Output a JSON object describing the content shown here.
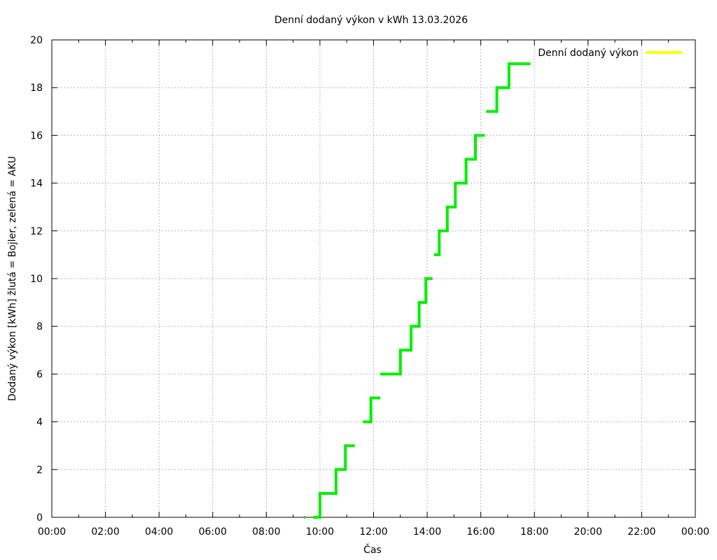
{
  "chart_data": {
    "type": "line",
    "title": "Denní dodaný výkon v kWh 13.03.2026",
    "xlabel": "Čas",
    "ylabel": "Dodaný výkon [kWh]  žlutá = Bojler, zelená = AKU",
    "xlim": [
      0,
      24
    ],
    "ylim": [
      0,
      20
    ],
    "x_ticks": [
      {
        "v": 0,
        "label": "00:00"
      },
      {
        "v": 2,
        "label": "02:00"
      },
      {
        "v": 4,
        "label": "04:00"
      },
      {
        "v": 6,
        "label": "06:00"
      },
      {
        "v": 8,
        "label": "08:00"
      },
      {
        "v": 10,
        "label": "10:00"
      },
      {
        "v": 12,
        "label": "12:00"
      },
      {
        "v": 14,
        "label": "14:00"
      },
      {
        "v": 16,
        "label": "16:00"
      },
      {
        "v": 18,
        "label": "18:00"
      },
      {
        "v": 20,
        "label": "20:00"
      },
      {
        "v": 22,
        "label": "22:00"
      },
      {
        "v": 24,
        "label": "00:00"
      }
    ],
    "y_ticks": [
      0,
      2,
      4,
      6,
      8,
      10,
      12,
      14,
      16,
      18,
      20
    ],
    "grid": true,
    "legend_position": "top-right",
    "series": [
      {
        "name": "Denní dodaný výkon",
        "legend_color": "#ffff00",
        "line_color": "#00ee00",
        "segments": [
          [
            [
              9.4,
              0
            ],
            [
              9.45,
              0
            ]
          ],
          [
            [
              9.75,
              0
            ],
            [
              10.0,
              0
            ],
            [
              10.0,
              1
            ],
            [
              10.6,
              1
            ],
            [
              10.6,
              2
            ],
            [
              10.95,
              2
            ],
            [
              10.95,
              3
            ],
            [
              11.3,
              3
            ]
          ],
          [
            [
              11.6,
              4
            ],
            [
              11.9,
              4
            ],
            [
              11.9,
              5
            ],
            [
              12.25,
              5
            ]
          ],
          [
            [
              12.25,
              6
            ],
            [
              13.0,
              6
            ],
            [
              13.0,
              7
            ],
            [
              13.4,
              7
            ],
            [
              13.4,
              8
            ],
            [
              13.7,
              8
            ],
            [
              13.7,
              9
            ],
            [
              13.95,
              9
            ],
            [
              13.95,
              10
            ],
            [
              14.2,
              10
            ]
          ],
          [
            [
              14.25,
              11
            ],
            [
              14.45,
              11
            ],
            [
              14.45,
              12
            ],
            [
              14.75,
              12
            ],
            [
              14.75,
              13
            ],
            [
              15.05,
              13
            ],
            [
              15.05,
              14
            ],
            [
              15.45,
              14
            ],
            [
              15.45,
              15
            ],
            [
              15.8,
              15
            ],
            [
              15.8,
              16
            ],
            [
              16.15,
              16
            ]
          ],
          [
            [
              16.2,
              17
            ],
            [
              16.6,
              17
            ],
            [
              16.6,
              18
            ],
            [
              17.05,
              18
            ],
            [
              17.05,
              19
            ],
            [
              17.85,
              19
            ]
          ]
        ]
      }
    ]
  }
}
